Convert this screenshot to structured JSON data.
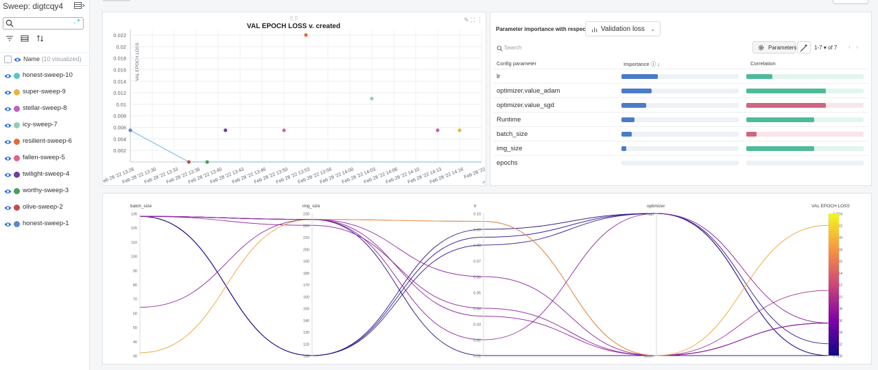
{
  "sidebar": {
    "title": "Sweep: digtcqy4",
    "name_header": "Name",
    "visualized_count": "(10 visualized)",
    "runs": [
      {
        "name": "honest-sweep-10",
        "color": "#58c4cc"
      },
      {
        "name": "super-sweep-9",
        "color": "#e9b43a"
      },
      {
        "name": "stellar-sweep-8",
        "color": "#c25fc4"
      },
      {
        "name": "icy-sweep-7",
        "color": "#91cdb5"
      },
      {
        "name": "resilient-sweep-6",
        "color": "#e06b3a"
      },
      {
        "name": "fallen-sweep-5",
        "color": "#e0628d"
      },
      {
        "name": "twilight-sweep-4",
        "color": "#6a3fa8"
      },
      {
        "name": "worthy-sweep-3",
        "color": "#4a9d5b"
      },
      {
        "name": "olive-sweep-2",
        "color": "#c84a4a"
      },
      {
        "name": "honest-sweep-1",
        "color": "#5b87d4"
      }
    ]
  },
  "scatter": {
    "title": "VAL EPOCH LOSS v. created",
    "ylabel": "VAL EPOCH LOSS"
  },
  "chart_data": [
    {
      "type": "scatter",
      "title": "VAL EPOCH LOSS v. created",
      "xlabel": "",
      "ylabel": "VAL EPOCH LOSS",
      "ylim": [
        0,
        0.022
      ],
      "y_ticks": [
        "0.002",
        "0.004",
        "0.006",
        "0.008",
        "0.01",
        "0.012",
        "0.014",
        "0.016",
        "0.018",
        "0.02",
        "0.022"
      ],
      "x_ticks": [
        "Feb 28 '22 13:26",
        "Feb 28 '22 13:30",
        "Feb 28 '22 13:33",
        "Feb 28 '22 13:36",
        "Feb 28 '22 13:40",
        "Feb 28 '22 13:43",
        "Feb 28 '22 13:46",
        "Feb 28 '22 13:50",
        "Feb 28 '22 13:53",
        "Feb 28 '22 13:56",
        "Feb 28 '22 14:00",
        "Feb 28 '22 14:03",
        "Feb 28 '22 14:06",
        "Feb 28 '22 14:10",
        "Feb 28 '22 14:13",
        "Feb 28 '22 14:16",
        "Feb 28 '22"
      ],
      "grid": true,
      "points": [
        {
          "run": "honest-sweep-1",
          "x": "Feb 28 '22 13:26",
          "y": 0.0055,
          "color": "#5b87d4"
        },
        {
          "run": "olive-sweep-2",
          "x": "Feb 28 '22 13:35",
          "y": 0.0,
          "color": "#c84a4a"
        },
        {
          "run": "worthy-sweep-3",
          "x": "Feb 28 '22 13:38",
          "y": 0.0,
          "color": "#4a9d5b"
        },
        {
          "run": "twilight-sweep-4",
          "x": "Feb 28 '22 13:41",
          "y": 0.0055,
          "color": "#6a3fa8"
        },
        {
          "run": "fallen-sweep-5",
          "x": "Feb 28 '22 13:50",
          "y": 0.0055,
          "color": "#e0628d"
        },
        {
          "run": "resilient-sweep-6",
          "x": "Feb 28 '22 13:53",
          "y": 0.022,
          "color": "#e06b3a"
        },
        {
          "run": "icy-sweep-7",
          "x": "Feb 28 '22 14:03",
          "y": 0.011,
          "color": "#91cdb5"
        },
        {
          "run": "stellar-sweep-8",
          "x": "Feb 28 '22 14:13",
          "y": 0.0055,
          "color": "#c25fc4"
        },
        {
          "run": "super-sweep-9",
          "x": "Feb 28 '22 14:16",
          "y": 0.0055,
          "color": "#e9b43a"
        }
      ],
      "best_line": [
        {
          "x": "Feb 28 '22 13:26",
          "y": 0.0055
        },
        {
          "x": "Feb 28 '22 13:35",
          "y": 0.0
        },
        {
          "x": "Feb 28 '22",
          "y": 0.0
        }
      ],
      "best_line_color": "#73b7e6"
    },
    {
      "type": "table",
      "title": "Parameter importance with respect to",
      "metric": "Validation loss",
      "columns": [
        "Config parameter",
        "Importance",
        "Correlation"
      ],
      "rows": [
        {
          "param": "lr",
          "importance": 0.31,
          "correlation": 0.22,
          "sign": "positive"
        },
        {
          "param": "optimizer.value_adam",
          "importance": 0.26,
          "correlation": 0.68,
          "sign": "positive"
        },
        {
          "param": "optimizer.value_sgd",
          "importance": 0.21,
          "correlation": -0.68,
          "sign": "negative"
        },
        {
          "param": "Runtime",
          "importance": 0.11,
          "correlation": 0.58,
          "sign": "positive"
        },
        {
          "param": "batch_size",
          "importance": 0.09,
          "correlation": -0.09,
          "sign": "negative"
        },
        {
          "param": "img_size",
          "importance": 0.04,
          "correlation": 0.58,
          "sign": "positive"
        },
        {
          "param": "epochs",
          "importance": 0.0,
          "correlation": 0.0,
          "sign": "positive"
        }
      ]
    },
    {
      "type": "line",
      "subtype": "parallel-coordinates",
      "axes": [
        {
          "name": "batch_size",
          "ticks": [
            "130",
            "120",
            "110",
            "100",
            "90",
            "80",
            "70",
            "60",
            "50",
            "40",
            "30"
          ],
          "range": [
            30,
            130
          ]
        },
        {
          "name": "img_size",
          "ticks": [
            "230",
            "220",
            "210",
            "200",
            "190",
            "180",
            "170",
            "160",
            "150",
            "140",
            "130",
            "120",
            "110"
          ],
          "range": [
            110,
            230
          ]
        },
        {
          "name": "lr",
          "ticks": [
            "0.10",
            "0.09",
            "0.08",
            "0.07",
            "0.06",
            "0.05",
            "0.04",
            "0.03",
            "0.02",
            "0.01"
          ],
          "range": [
            0.01,
            0.1
          ]
        },
        {
          "name": "optimizer",
          "ticks": [
            "sgd",
            "adam"
          ],
          "range": [
            "sgd",
            "adam"
          ]
        },
        {
          "name": "VAL EPOCH LOSS",
          "ticks": [
            "0.024",
            "0.022",
            "0.020",
            "0.018",
            "0.016",
            "0.014",
            "0.012",
            "0.010",
            "0.008",
            "0.006",
            "0.004",
            "0.002",
            "0.000"
          ],
          "range": [
            0,
            0.024
          ]
        }
      ],
      "series": [
        {
          "values": [
            128,
            225,
            0.01,
            "adam",
            0.0
          ],
          "color": "#1a0a7a"
        },
        {
          "values": [
            128,
            110,
            0.09,
            "sgd",
            0.0
          ],
          "color": "#1e0a80"
        },
        {
          "values": [
            128,
            110,
            0.085,
            "sgd",
            0.0
          ],
          "color": "#231087"
        },
        {
          "values": [
            128,
            110,
            0.08,
            "sgd",
            0.002
          ],
          "color": "#2a118c"
        },
        {
          "values": [
            64,
            225,
            0.06,
            "adam",
            0.0055
          ],
          "color": "#8a1ea0"
        },
        {
          "values": [
            128,
            225,
            0.035,
            "adam",
            0.0055
          ],
          "color": "#8a1ea0"
        },
        {
          "values": [
            128,
            220,
            0.04,
            "adam",
            0.0055
          ],
          "color": "#8a1ea0"
        },
        {
          "values": [
            128,
            225,
            0.095,
            "adam",
            0.011
          ],
          "color": "#a53095"
        },
        {
          "values": [
            32,
            225,
            0.095,
            "adam",
            0.022
          ],
          "color": "#f0a030"
        },
        {
          "values": [
            128,
            225,
            0.02,
            "sgd",
            0.0055
          ],
          "color": "#8a1ea0"
        }
      ],
      "colorbar": [
        "#0d0887",
        "#7e03a8",
        "#cc4778",
        "#f89540",
        "#f0f921"
      ]
    }
  ]
}
